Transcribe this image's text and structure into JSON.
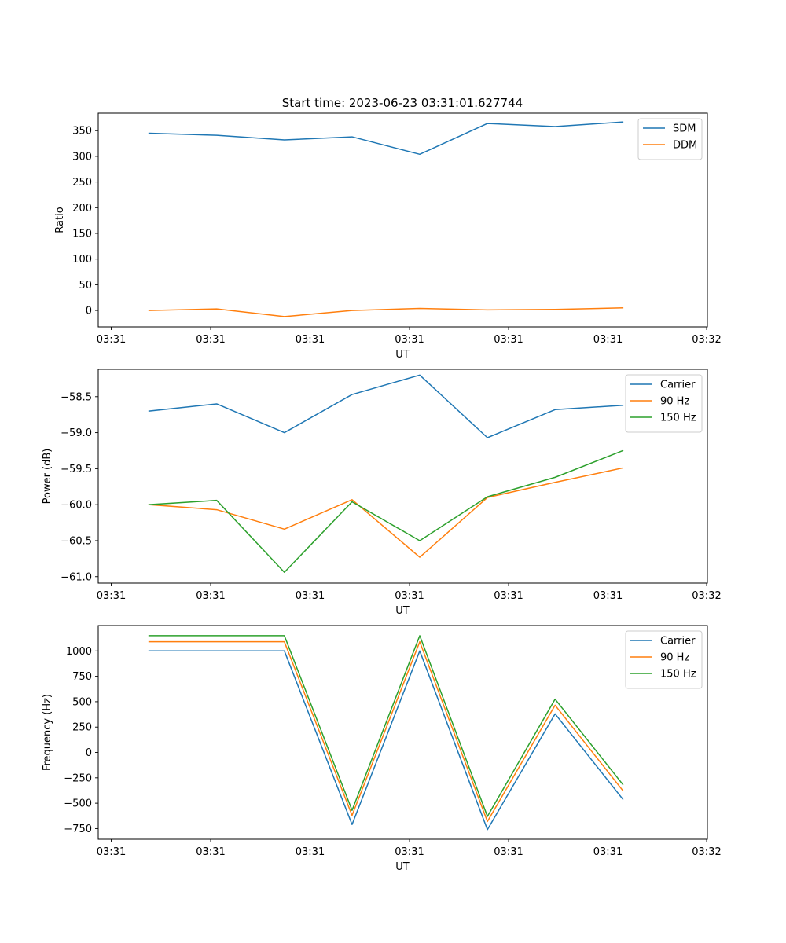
{
  "figure": {
    "title": "Start time: 2023-06-23 03:31:01.627744"
  },
  "chart_data": [
    {
      "type": "line",
      "title": "Start time: 2023-06-23 03:31:01.627744",
      "xlabel": "UT",
      "ylabel": "Ratio",
      "x_tick_labels": [
        "03:31",
        "03:31",
        "03:31",
        "03:31",
        "03:31",
        "03:31",
        "03:32"
      ],
      "x": [
        1,
        2,
        3,
        4,
        5,
        6,
        7,
        8
      ],
      "xlim": [
        0.25,
        9.25
      ],
      "ylim": [
        -32,
        384
      ],
      "y_ticks": [
        0,
        50,
        100,
        150,
        200,
        250,
        300,
        350
      ],
      "y_tick_labels": [
        "0",
        "50",
        "100",
        "150",
        "200",
        "250",
        "300",
        "350"
      ],
      "legend_position": "top-right",
      "grid": false,
      "series": [
        {
          "name": "SDM",
          "color": "#1f77b4",
          "values": [
            345,
            341,
            332,
            338,
            304,
            364,
            358,
            367
          ]
        },
        {
          "name": "DDM",
          "color": "#ff7f0e",
          "values": [
            0,
            3,
            -12,
            0,
            4,
            1,
            2,
            5
          ]
        }
      ]
    },
    {
      "type": "line",
      "xlabel": "UT",
      "ylabel": "Power (dB)",
      "x_tick_labels": [
        "03:31",
        "03:31",
        "03:31",
        "03:31",
        "03:31",
        "03:31",
        "03:32"
      ],
      "x": [
        1,
        2,
        3,
        4,
        5,
        6,
        7,
        8
      ],
      "xlim": [
        0.25,
        9.25
      ],
      "ylim": [
        -61.09,
        -58.12
      ],
      "y_ticks": [
        -61.0,
        -60.5,
        -60.0,
        -59.5,
        -59.0,
        -58.5
      ],
      "y_tick_labels": [
        "−61.0",
        "−60.5",
        "−60.0",
        "−59.5",
        "−59.0",
        "−58.5"
      ],
      "legend_position": "top-right",
      "grid": false,
      "series": [
        {
          "name": "Carrier",
          "color": "#1f77b4",
          "values": [
            -58.7,
            -58.6,
            -59.0,
            -58.47,
            -58.2,
            -59.07,
            -58.68,
            -58.62
          ]
        },
        {
          "name": "90 Hz",
          "color": "#ff7f0e",
          "values": [
            -60.0,
            -60.07,
            -60.34,
            -59.93,
            -60.73,
            -59.9,
            -59.69,
            -59.49
          ]
        },
        {
          "name": "150 Hz",
          "color": "#2ca02c",
          "values": [
            -60.0,
            -59.94,
            -60.94,
            -59.96,
            -60.5,
            -59.89,
            -59.62,
            -59.25
          ]
        }
      ]
    },
    {
      "type": "line",
      "xlabel": "UT",
      "ylabel": "Frequency (Hz)",
      "x_tick_labels": [
        "03:31",
        "03:31",
        "03:31",
        "03:31",
        "03:31",
        "03:31",
        "03:32"
      ],
      "x": [
        1,
        2,
        3,
        4,
        5,
        6,
        7,
        8
      ],
      "xlim": [
        0.25,
        9.25
      ],
      "ylim": [
        -855,
        1250
      ],
      "y_ticks": [
        -750,
        -500,
        -250,
        0,
        250,
        500,
        750,
        1000
      ],
      "y_tick_labels": [
        "−750",
        "−500",
        "−250",
        "0",
        "250",
        "500",
        "750",
        "1000"
      ],
      "legend_position": "top-right",
      "grid": false,
      "series": [
        {
          "name": "Carrier",
          "color": "#1f77b4",
          "values": [
            1000,
            1000,
            1000,
            -710,
            1000,
            -760,
            380,
            -460
          ]
        },
        {
          "name": "90 Hz",
          "color": "#ff7f0e",
          "values": [
            1090,
            1090,
            1090,
            -620,
            1090,
            -680,
            465,
            -375
          ]
        },
        {
          "name": "150 Hz",
          "color": "#2ca02c",
          "values": [
            1150,
            1150,
            1150,
            -570,
            1150,
            -630,
            525,
            -315
          ]
        }
      ]
    }
  ]
}
